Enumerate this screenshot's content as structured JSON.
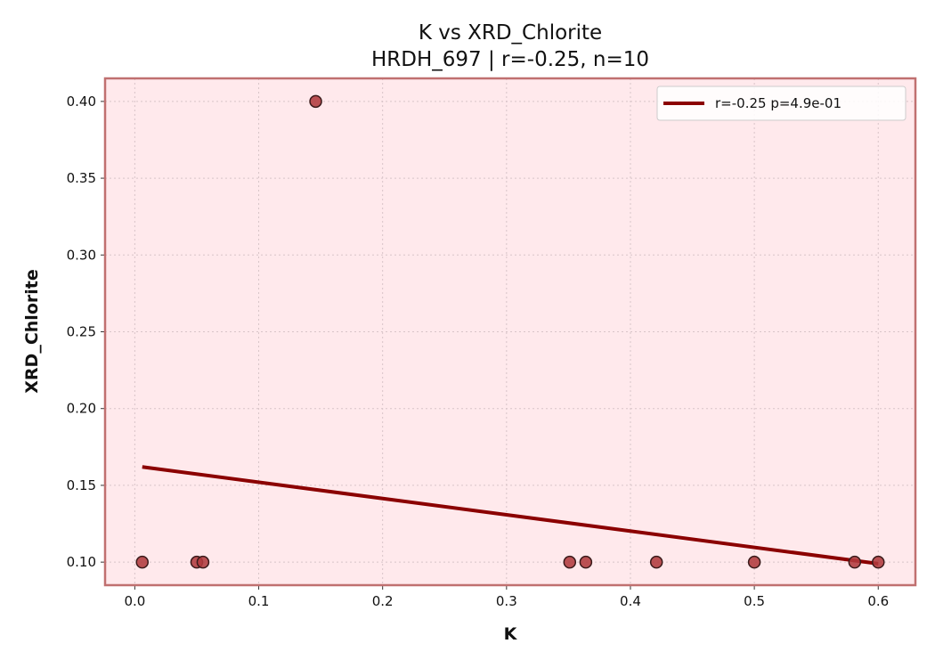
{
  "chart_data": {
    "type": "scatter",
    "title": "K vs XRD_Chlorite",
    "subtitle": "HRDH_697 | r=-0.25, n=10",
    "xlabel": "K",
    "ylabel": "XRD_Chlorite",
    "xlim": [
      -0.024,
      0.63
    ],
    "ylim": [
      0.085,
      0.415
    ],
    "x_ticks": [
      0.0,
      0.1,
      0.2,
      0.3,
      0.4,
      0.5,
      0.6
    ],
    "x_tick_labels": [
      "0.0",
      "0.1",
      "0.2",
      "0.3",
      "0.4",
      "0.5",
      "0.6"
    ],
    "y_ticks": [
      0.1,
      0.15,
      0.2,
      0.25,
      0.3,
      0.35,
      0.4
    ],
    "y_tick_labels": [
      "0.10",
      "0.15",
      "0.20",
      "0.25",
      "0.30",
      "0.35",
      "0.40"
    ],
    "grid": true,
    "legend_position": "top-right",
    "points": [
      {
        "x": 0.006,
        "y": 0.1
      },
      {
        "x": 0.05,
        "y": 0.1
      },
      {
        "x": 0.055,
        "y": 0.1
      },
      {
        "x": 0.146,
        "y": 0.4
      },
      {
        "x": 0.351,
        "y": 0.1
      },
      {
        "x": 0.364,
        "y": 0.1
      },
      {
        "x": 0.421,
        "y": 0.1
      },
      {
        "x": 0.5,
        "y": 0.1
      },
      {
        "x": 0.581,
        "y": 0.1
      },
      {
        "x": 0.6,
        "y": 0.1
      }
    ],
    "fit_line": {
      "label": "r=-0.25  p=4.9e-01",
      "x": [
        0.006,
        0.6
      ],
      "y": [
        0.162,
        0.099
      ]
    },
    "colors": {
      "plot_background": "#ffe9ec",
      "frame": "#c07070",
      "marker_fill": "#b03a3e",
      "marker_edge": "#3a1a1a",
      "fit_line": "#8b0000",
      "grid": "#d8c4c8"
    }
  }
}
